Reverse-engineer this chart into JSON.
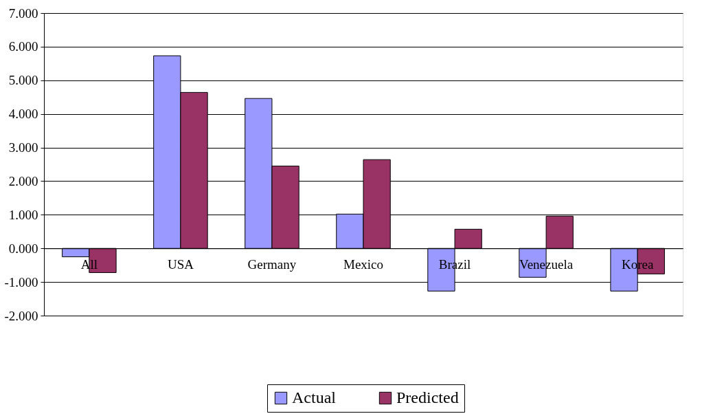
{
  "chart_data": {
    "type": "bar",
    "categories": [
      "All",
      "USA",
      "Germany",
      "Mexico",
      "Brazil",
      "Venezuela",
      "Korea"
    ],
    "series": [
      {
        "name": "Actual",
        "color": "#9999ff",
        "values": [
          -0.25,
          5.73,
          4.46,
          1.02,
          -1.27,
          -0.86,
          -1.27
        ]
      },
      {
        "name": "Predicted",
        "color": "#993366",
        "values": [
          -0.72,
          4.64,
          2.45,
          2.64,
          0.57,
          0.96,
          -0.76
        ]
      }
    ],
    "ylim": [
      -2,
      7
    ],
    "yticks": [
      {
        "value": -2,
        "label": "-2.000"
      },
      {
        "value": -1,
        "label": "-1.000"
      },
      {
        "value": 0,
        "label": "0.000"
      },
      {
        "value": 1,
        "label": "1.000"
      },
      {
        "value": 2,
        "label": "2.000"
      },
      {
        "value": 3,
        "label": "3.000"
      },
      {
        "value": 4,
        "label": "4.000"
      },
      {
        "value": 5,
        "label": "5.000"
      },
      {
        "value": 6,
        "label": "6.000"
      },
      {
        "value": 7,
        "label": "7.000"
      }
    ],
    "grid": "y",
    "legend": "bottom"
  }
}
